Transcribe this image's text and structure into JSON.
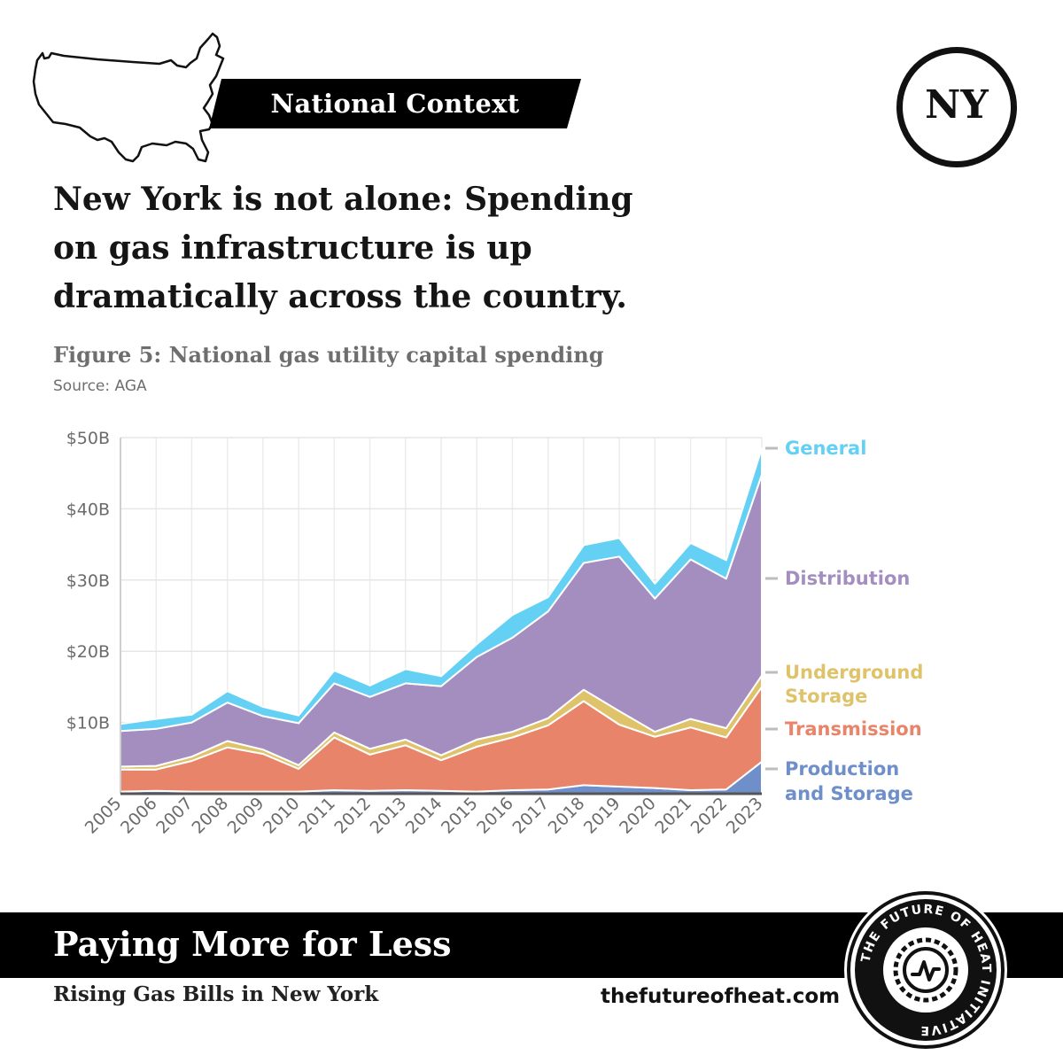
{
  "header": {
    "context_label": "National Context",
    "state_badge": "NY",
    "headline_lines": [
      "New York is not alone: Spending",
      "on gas infrastructure is up",
      "dramatically across the country."
    ]
  },
  "figure": {
    "title": "Figure 5: National gas utility capital spending",
    "source": "Source: AGA"
  },
  "footer": {
    "title": "Paying More for Less",
    "subtitle": "Rising Gas Bills in New York",
    "url": "thefutureofheat.com",
    "logo_text": "THE FUTURE OF HEAT INITIATIVE"
  },
  "chart_data": {
    "type": "area",
    "stacked": true,
    "x": [
      "2005",
      "2006",
      "2007",
      "2008",
      "2009",
      "2010",
      "2011",
      "2012",
      "2013",
      "2014",
      "2015",
      "2016",
      "2017",
      "2018",
      "2019",
      "2020",
      "2021",
      "2022",
      "2023"
    ],
    "yticks": [
      "$10B",
      "$20B",
      "$30B",
      "$40B",
      "$50B"
    ],
    "ylim": [
      0,
      50
    ],
    "unit": "billion USD",
    "grid": true,
    "legend_position": "right, inline at series ends",
    "series": [
      {
        "name": "Production and Storage",
        "color": "#6f8fcb",
        "values": [
          0.3,
          0.4,
          0.3,
          0.3,
          0.3,
          0.3,
          0.5,
          0.4,
          0.5,
          0.4,
          0.3,
          0.5,
          0.6,
          1.2,
          1.0,
          0.8,
          0.5,
          0.6,
          4.5
        ]
      },
      {
        "name": "Transmission",
        "color": "#e8846a",
        "values": [
          3.1,
          3.0,
          4.3,
          6.2,
          5.3,
          3.2,
          7.4,
          5.1,
          6.3,
          4.3,
          6.3,
          7.4,
          9.0,
          11.8,
          8.7,
          7.2,
          8.8,
          7.3,
          10.5
        ]
      },
      {
        "name": "Underground Storage",
        "color": "#dfc36a",
        "values": [
          0.4,
          0.5,
          0.6,
          0.9,
          0.6,
          0.5,
          0.7,
          0.8,
          0.8,
          0.7,
          1.0,
          0.8,
          1.0,
          1.6,
          1.9,
          0.7,
          1.2,
          1.3,
          1.6
        ]
      },
      {
        "name": "Distribution",
        "color": "#a48ec0",
        "values": [
          5.0,
          5.2,
          4.8,
          5.4,
          4.7,
          5.9,
          6.9,
          7.3,
          7.9,
          9.7,
          11.6,
          13.2,
          15.0,
          17.8,
          21.7,
          18.7,
          22.4,
          21.0,
          28.2
        ]
      },
      {
        "name": "General",
        "color": "#64d1f4",
        "values": [
          1.0,
          1.4,
          1.1,
          1.6,
          1.3,
          1.1,
          1.8,
          1.6,
          2.0,
          1.4,
          1.8,
          3.2,
          2.0,
          2.5,
          2.6,
          2.1,
          2.3,
          2.6,
          3.7
        ]
      }
    ]
  }
}
